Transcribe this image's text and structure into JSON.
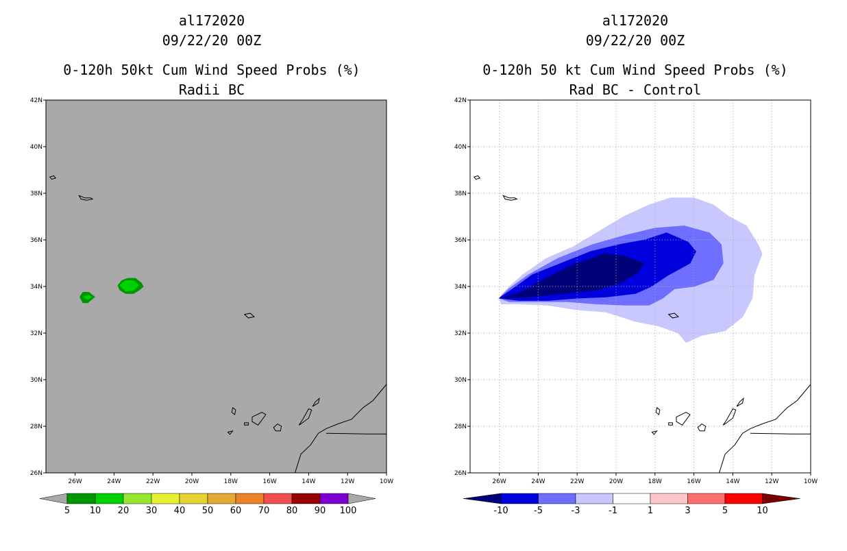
{
  "chart_data": [
    {
      "type": "contour_map",
      "title_lines": [
        "al172020",
        "09/22/20 00Z",
        "0-120h 50kt Cum Wind Speed Probs (%)",
        "Radii BC"
      ],
      "x_ticks": [
        "26W",
        "24W",
        "22W",
        "20W",
        "18W",
        "16W",
        "14W",
        "12W",
        "10W"
      ],
      "y_ticks": [
        "26N",
        "28N",
        "30N",
        "32N",
        "34N",
        "36N",
        "38N",
        "40N",
        "42N"
      ],
      "lon_range": [
        -27.5,
        -10
      ],
      "lat_range": [
        26,
        42
      ],
      "background": "#a9a9a9",
      "grid": false,
      "colorbar": {
        "labels": [
          "5",
          "10",
          "20",
          "30",
          "40",
          "50",
          "60",
          "70",
          "80",
          "90",
          "100"
        ],
        "colors": [
          "#009600",
          "#00d200",
          "#96e632",
          "#e6f032",
          "#e6d232",
          "#e6aa32",
          "#eb8228",
          "#f05050",
          "#960000",
          "#7d00d2"
        ],
        "end_color": "#a9a9a9"
      },
      "features": [
        {
          "name": "prob-10pct-east",
          "fill": "#009600",
          "points": [
            [
              -23.8,
              34.05
            ],
            [
              -23.6,
              34.25
            ],
            [
              -23.3,
              34.35
            ],
            [
              -22.9,
              34.35
            ],
            [
              -22.6,
              34.15
            ],
            [
              -22.5,
              34.0
            ],
            [
              -22.7,
              33.85
            ],
            [
              -23.0,
              33.7
            ],
            [
              -23.4,
              33.7
            ],
            [
              -23.7,
              33.85
            ]
          ]
        },
        {
          "name": "prob-20pct-east",
          "fill": "#00d200",
          "points": [
            [
              -23.7,
              34.05
            ],
            [
              -23.4,
              34.25
            ],
            [
              -23.0,
              34.25
            ],
            [
              -22.75,
              34.05
            ],
            [
              -23.0,
              33.85
            ],
            [
              -23.4,
              33.8
            ]
          ]
        },
        {
          "name": "prob-10pct-west",
          "fill": "#009600",
          "points": [
            [
              -25.75,
              33.55
            ],
            [
              -25.6,
              33.75
            ],
            [
              -25.3,
              33.75
            ],
            [
              -25.0,
              33.55
            ],
            [
              -25.35,
              33.3
            ],
            [
              -25.6,
              33.3
            ]
          ]
        },
        {
          "name": "prob-20pct-west",
          "fill": "#00d200",
          "points": [
            [
              -25.55,
              33.55
            ],
            [
              -25.3,
              33.62
            ],
            [
              -25.15,
              33.55
            ],
            [
              -25.35,
              33.45
            ]
          ]
        }
      ]
    },
    {
      "type": "contour_map",
      "title_lines": [
        "al172020",
        "09/22/20 00Z",
        "0-120h 50 kt Cum Wind Speed Probs (%)",
        "Rad BC - Control"
      ],
      "x_ticks": [
        "26W",
        "24W",
        "22W",
        "20W",
        "18W",
        "16W",
        "14W",
        "12W",
        "10W"
      ],
      "y_ticks": [
        "26N",
        "28N",
        "30N",
        "32N",
        "34N",
        "36N",
        "38N",
        "40N",
        "42N"
      ],
      "lon_range": [
        -27.5,
        -10
      ],
      "lat_range": [
        26,
        42
      ],
      "background": "#ffffff",
      "grid": true,
      "colorbar": {
        "labels": [
          "-10",
          "-5",
          "-3",
          "-1",
          "1",
          "3",
          "5",
          "10"
        ],
        "colors": [
          "#0000dc",
          "#6e6eff",
          "#c8c8ff",
          "#ffffff",
          "#ffc8c8",
          "#ff6e6e",
          "#ff0000"
        ],
        "end_colors": [
          "#000078",
          "#780000"
        ]
      },
      "features": [
        {
          "name": "diff-minus-1",
          "fill": "#c8c8ff",
          "points": [
            [
              -26.0,
              33.5
            ],
            [
              -25.6,
              33.9
            ],
            [
              -24.8,
              34.5
            ],
            [
              -23.6,
              35.2
            ],
            [
              -22.2,
              35.7
            ],
            [
              -21.0,
              36.3
            ],
            [
              -19.6,
              37.0
            ],
            [
              -18.3,
              37.5
            ],
            [
              -17.2,
              37.8
            ],
            [
              -16.0,
              37.8
            ],
            [
              -15.0,
              37.5
            ],
            [
              -14.2,
              37.0
            ],
            [
              -13.3,
              36.6
            ],
            [
              -12.7,
              35.8
            ],
            [
              -12.5,
              35.4
            ],
            [
              -12.9,
              34.5
            ],
            [
              -13.0,
              33.5
            ],
            [
              -13.5,
              32.7
            ],
            [
              -14.4,
              32.1
            ],
            [
              -15.0,
              32.0
            ],
            [
              -15.6,
              31.9
            ],
            [
              -16.4,
              31.6
            ],
            [
              -16.8,
              32.0
            ],
            [
              -17.8,
              32.3
            ],
            [
              -19.0,
              32.5
            ],
            [
              -20.5,
              32.9
            ],
            [
              -22.0,
              33.0
            ],
            [
              -23.5,
              33.2
            ],
            [
              -25.0,
              33.25
            ],
            [
              -25.9,
              33.25
            ]
          ]
        },
        {
          "name": "diff-minus-3",
          "fill": "#6e6eff",
          "points": [
            [
              -26.0,
              33.5
            ],
            [
              -25.5,
              33.9
            ],
            [
              -24.5,
              34.5
            ],
            [
              -23.0,
              35.2
            ],
            [
              -21.2,
              35.8
            ],
            [
              -19.5,
              36.2
            ],
            [
              -18.0,
              36.5
            ],
            [
              -16.5,
              36.6
            ],
            [
              -15.2,
              36.3
            ],
            [
              -14.6,
              35.8
            ],
            [
              -14.5,
              35.0
            ],
            [
              -15.0,
              34.3
            ],
            [
              -16.0,
              34.0
            ],
            [
              -17.0,
              33.9
            ],
            [
              -17.6,
              33.5
            ],
            [
              -18.3,
              33.2
            ],
            [
              -19.5,
              33.2
            ],
            [
              -21.0,
              33.25
            ],
            [
              -22.5,
              33.35
            ],
            [
              -24.0,
              33.35
            ],
            [
              -25.5,
              33.35
            ]
          ]
        },
        {
          "name": "diff-minus-5",
          "fill": "#0000dc",
          "points": [
            [
              -26.0,
              33.5
            ],
            [
              -25.3,
              33.9
            ],
            [
              -24.3,
              34.5
            ],
            [
              -22.8,
              35.0
            ],
            [
              -21.3,
              35.5
            ],
            [
              -19.8,
              35.8
            ],
            [
              -18.5,
              36.0
            ],
            [
              -17.4,
              36.3
            ],
            [
              -16.3,
              35.9
            ],
            [
              -15.9,
              35.5
            ],
            [
              -16.2,
              35.0
            ],
            [
              -17.3,
              34.5
            ],
            [
              -18.2,
              34.0
            ],
            [
              -19.0,
              33.7
            ],
            [
              -20.5,
              33.55
            ],
            [
              -22.0,
              33.5
            ],
            [
              -23.5,
              33.4
            ],
            [
              -25.0,
              33.4
            ]
          ]
        },
        {
          "name": "diff-minus-10",
          "fill": "#000078",
          "points": [
            [
              -25.9,
              33.5
            ],
            [
              -25.0,
              33.7
            ],
            [
              -23.7,
              34.3
            ],
            [
              -22.3,
              34.9
            ],
            [
              -20.6,
              35.4
            ],
            [
              -19.6,
              35.3
            ],
            [
              -18.6,
              35.0
            ],
            [
              -18.9,
              34.6
            ],
            [
              -19.8,
              34.15
            ],
            [
              -21.0,
              33.85
            ],
            [
              -22.8,
              33.7
            ],
            [
              -24.5,
              33.55
            ]
          ]
        }
      ]
    }
  ]
}
